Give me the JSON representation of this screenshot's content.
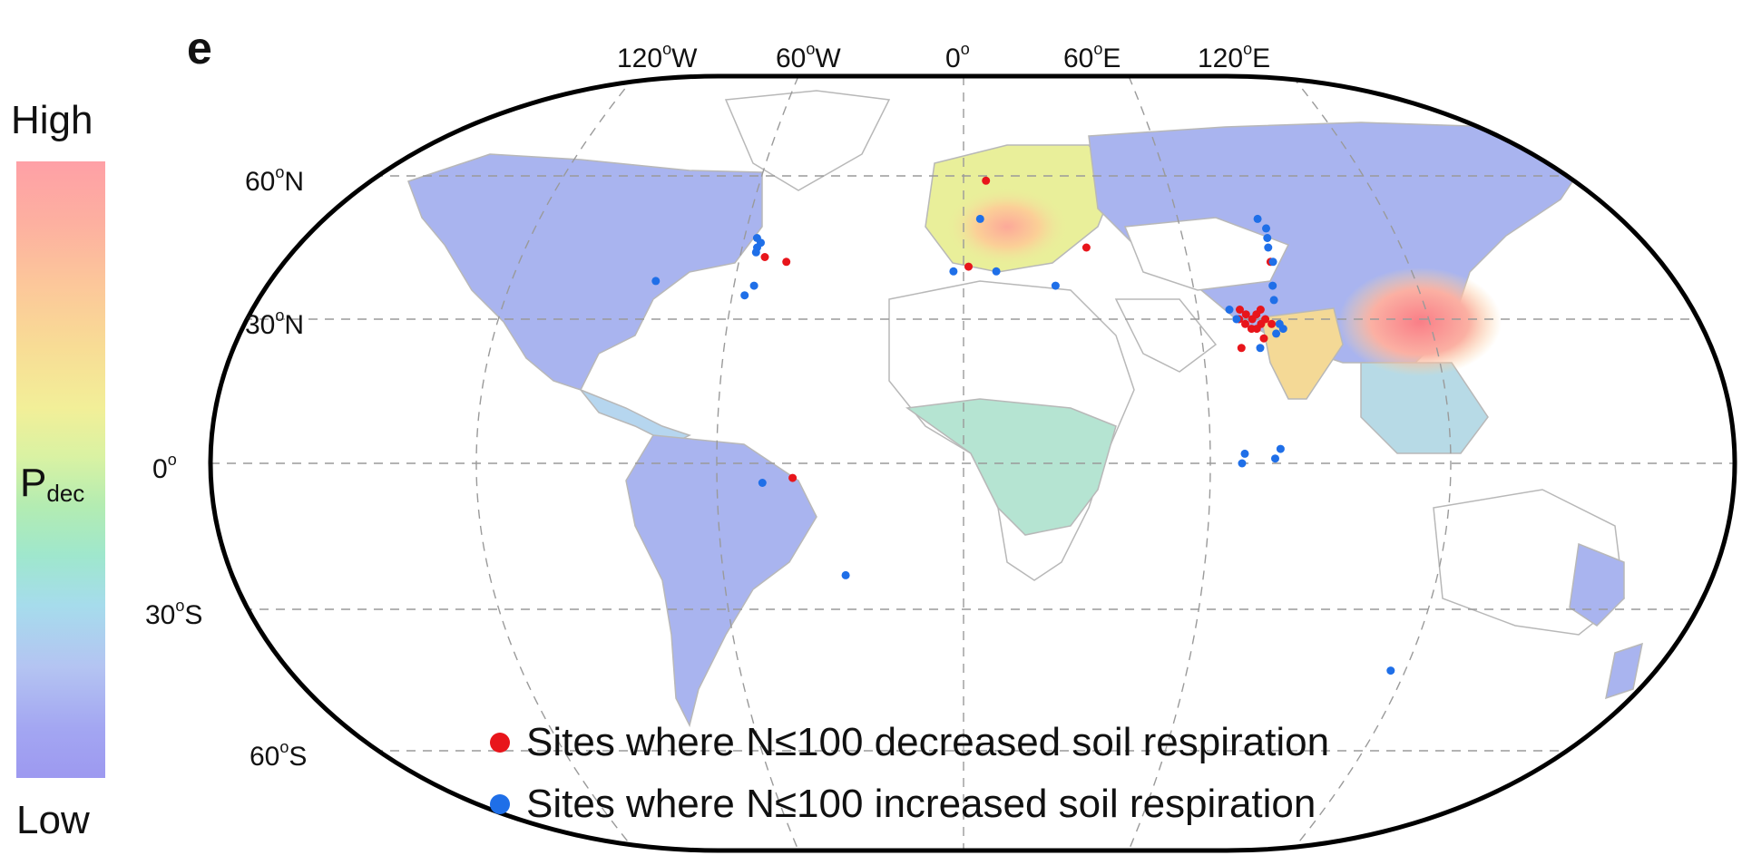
{
  "panel_label": "e",
  "colorbar": {
    "high_label": "High",
    "low_label": "Low",
    "variable": "P",
    "variable_subscript": "dec"
  },
  "longitude_labels": [
    {
      "deg": "120",
      "unit": "o",
      "hemi": "W"
    },
    {
      "deg": "60",
      "unit": "o",
      "hemi": "W"
    },
    {
      "deg": "0",
      "unit": "o",
      "hemi": ""
    },
    {
      "deg": "60",
      "unit": "o",
      "hemi": "E"
    },
    {
      "deg": "120",
      "unit": "o",
      "hemi": "E"
    }
  ],
  "latitude_labels": [
    {
      "deg": "60",
      "unit": "o",
      "hemi": "N"
    },
    {
      "deg": "30",
      "unit": "o",
      "hemi": "N"
    },
    {
      "deg": "0",
      "unit": "o",
      "hemi": ""
    },
    {
      "deg": "30",
      "unit": "o",
      "hemi": "S"
    },
    {
      "deg": "60",
      "unit": "o",
      "hemi": "S"
    }
  ],
  "legend": [
    {
      "label": "Sites where N≤100 decreased soil respiration",
      "color": "#e8151b"
    },
    {
      "label": "Sites where N≤100 increased soil respiration",
      "color": "#1f6fe8"
    }
  ],
  "site_sites": {
    "decreased": [
      {
        "lon": 10,
        "lat": 59
      },
      {
        "lon": -80,
        "lat": 43
      },
      {
        "lon": -71,
        "lat": 42
      },
      {
        "lon": 2,
        "lat": 41
      },
      {
        "lon": 50,
        "lat": 45
      },
      {
        "lon": -62,
        "lat": -3
      },
      {
        "lon": 123,
        "lat": 42
      },
      {
        "lon": 105,
        "lat": 30
      },
      {
        "lon": 107,
        "lat": 29
      },
      {
        "lon": 108,
        "lat": 31
      },
      {
        "lon": 110,
        "lat": 30
      },
      {
        "lon": 112,
        "lat": 31
      },
      {
        "lon": 113,
        "lat": 29
      },
      {
        "lon": 115,
        "lat": 30
      },
      {
        "lon": 109,
        "lat": 28
      },
      {
        "lon": 111,
        "lat": 28
      },
      {
        "lon": 106,
        "lat": 32
      },
      {
        "lon": 114,
        "lat": 32
      },
      {
        "lon": 117,
        "lat": 29
      },
      {
        "lon": 113,
        "lat": 26
      },
      {
        "lon": 104,
        "lat": 24
      }
    ],
    "increased": [
      {
        "lon": 7,
        "lat": 51
      },
      {
        "lon": -4,
        "lat": 40
      },
      {
        "lon": 13,
        "lat": 40
      },
      {
        "lon": -121,
        "lat": 38
      },
      {
        "lon": -85,
        "lat": 47
      },
      {
        "lon": -84,
        "lat": 45
      },
      {
        "lon": -83,
        "lat": 46
      },
      {
        "lon": -84,
        "lat": 44
      },
      {
        "lon": -85,
        "lat": 35
      },
      {
        "lon": -82,
        "lat": 37
      },
      {
        "lon": -73,
        "lat": -4
      },
      {
        "lon": -44,
        "lat": -23
      },
      {
        "lon": 36,
        "lat": 37
      },
      {
        "lon": 124,
        "lat": 51
      },
      {
        "lon": 126,
        "lat": 49
      },
      {
        "lon": 124,
        "lat": 45
      },
      {
        "lon": 125,
        "lat": 47
      },
      {
        "lon": 124,
        "lat": 42
      },
      {
        "lon": 121,
        "lat": 37
      },
      {
        "lon": 120,
        "lat": 34
      },
      {
        "lon": 102,
        "lat": 32
      },
      {
        "lon": 120,
        "lat": 29
      },
      {
        "lon": 118,
        "lat": 27
      },
      {
        "lon": 121,
        "lat": 28
      },
      {
        "lon": 104,
        "lat": 30
      },
      {
        "lon": 111,
        "lat": 24
      },
      {
        "lon": 101,
        "lat": 0
      },
      {
        "lon": 102,
        "lat": 2
      },
      {
        "lon": 113,
        "lat": 1
      },
      {
        "lon": 115,
        "lat": 3
      },
      {
        "lon": 172,
        "lat": -43
      }
    ]
  },
  "map_style": {
    "projection": "Robinson",
    "graticule": "dashed",
    "ocean": "#ffffff",
    "land_outline": "#b0b0b0"
  }
}
